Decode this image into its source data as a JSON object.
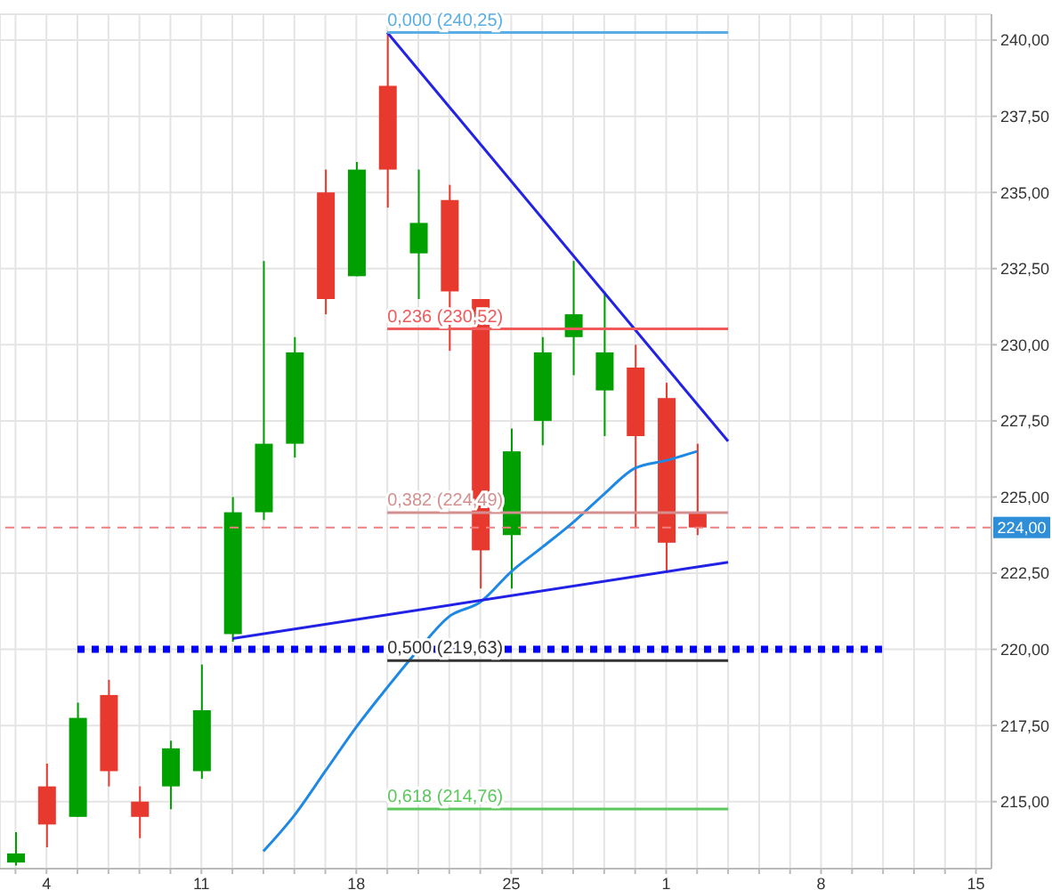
{
  "chart_data": {
    "type": "candlestick",
    "categories": [
      null,
      "4",
      null,
      null,
      null,
      null,
      "11",
      null,
      null,
      null,
      null,
      "18",
      null,
      null,
      null,
      null,
      "25",
      null,
      null,
      null,
      null,
      "1",
      null,
      null,
      null,
      null,
      "8",
      null,
      null,
      null,
      null,
      "15"
    ],
    "ohlc": [
      [
        213.0,
        214.0,
        212.9,
        213.3
      ],
      [
        215.5,
        216.25,
        213.5,
        214.25
      ],
      [
        214.5,
        218.25,
        214.5,
        217.75
      ],
      [
        218.5,
        219.0,
        215.5,
        216.0
      ],
      [
        215.0,
        215.5,
        213.8,
        214.5
      ],
      [
        215.5,
        217.0,
        214.75,
        216.75
      ],
      [
        216.0,
        219.5,
        215.75,
        218.0
      ],
      [
        220.5,
        225.0,
        220.25,
        224.5
      ],
      [
        224.5,
        232.75,
        224.25,
        226.75
      ],
      [
        226.75,
        230.25,
        226.3,
        229.75
      ],
      [
        235.0,
        235.75,
        231.0,
        231.5
      ],
      [
        232.25,
        236.0,
        232.25,
        235.75
      ],
      [
        238.5,
        240.25,
        234.5,
        235.75
      ],
      [
        233.0,
        235.75,
        231.5,
        234.0
      ],
      [
        234.75,
        235.25,
        229.8,
        231.75
      ],
      [
        231.5,
        231.5,
        222.0,
        223.25
      ],
      [
        223.75,
        227.25,
        222.0,
        226.5
      ],
      [
        227.5,
        230.25,
        226.7,
        229.75
      ],
      [
        230.25,
        232.75,
        229.0,
        231.0
      ],
      [
        228.5,
        231.75,
        227.0,
        229.75
      ],
      [
        229.25,
        230.0,
        224.0,
        227.0
      ],
      [
        228.25,
        228.75,
        222.5,
        223.5
      ],
      [
        224.5,
        226.75,
        223.75,
        224.0
      ],
      null,
      null,
      null,
      null,
      null,
      null,
      null,
      null,
      null
    ],
    "colors": [
      "#00a000",
      "#e8392f",
      "#00a000",
      "#e8392f",
      "#e8392f",
      "#00a000",
      "#00a000",
      "#00a000",
      "#00a000",
      "#00a000",
      "#e8392f",
      "#00a000",
      "#e8392f",
      "#00a000",
      "#e8392f",
      "#e8392f",
      "#00a000",
      "#00a000",
      "#00a000",
      "#00a000",
      "#e8392f",
      "#e8392f",
      "#e8392f",
      null,
      null,
      null,
      null,
      null,
      null,
      null,
      null,
      null
    ],
    "series": [
      {
        "type": "line",
        "color": "#1e88e5",
        "values": [
          null,
          null,
          null,
          null,
          null,
          null,
          null,
          null,
          213.37,
          214.55,
          216.0,
          217.45,
          218.75,
          219.98,
          221.08,
          221.55,
          222.55,
          223.35,
          224.17,
          225.1,
          225.95,
          226.2,
          226.5,
          null,
          null,
          null,
          null,
          null,
          null,
          null,
          null,
          null
        ]
      },
      {
        "type": "line",
        "color": "#2222e6",
        "values": [
          null,
          null,
          null,
          null,
          null,
          null,
          null,
          null,
          null,
          null,
          null,
          null,
          240.25,
          null,
          null,
          null,
          null,
          null,
          null,
          null,
          null,
          null,
          null,
          226.83,
          null,
          null,
          null,
          null,
          null,
          null,
          null,
          null
        ]
      },
      {
        "type": "line",
        "color": "#2222e6",
        "values": [
          null,
          null,
          null,
          null,
          null,
          null,
          null,
          220.35,
          null,
          null,
          null,
          null,
          null,
          null,
          null,
          null,
          null,
          null,
          null,
          null,
          null,
          null,
          null,
          222.86,
          null,
          null,
          null,
          null,
          null,
          null,
          null,
          null
        ]
      },
      {
        "type": "line",
        "color": "#0000ff",
        "line_style": "dotted",
        "values": [
          null,
          null,
          220,
          null,
          null,
          null,
          null,
          null,
          null,
          null,
          null,
          null,
          null,
          null,
          null,
          null,
          null,
          null,
          null,
          null,
          null,
          null,
          null,
          null,
          null,
          null,
          null,
          null,
          220,
          null,
          null,
          null
        ]
      },
      {
        "type": "line",
        "name": "0,000 (240,25)",
        "color": "#5aaee6",
        "values": [
          null,
          null,
          null,
          null,
          null,
          null,
          null,
          null,
          null,
          null,
          null,
          null,
          240.25,
          null,
          null,
          null,
          null,
          null,
          null,
          null,
          null,
          null,
          null,
          240.25,
          null,
          null,
          null,
          null,
          null,
          null,
          null,
          null
        ]
      },
      {
        "type": "line",
        "name": "0,236 (230,52)",
        "color": "#f05a5a",
        "values": [
          null,
          null,
          null,
          null,
          null,
          null,
          null,
          null,
          null,
          null,
          null,
          null,
          230.52,
          null,
          null,
          null,
          null,
          null,
          null,
          null,
          null,
          null,
          null,
          230.52,
          null,
          null,
          null,
          null,
          null,
          null,
          null,
          null
        ]
      },
      {
        "type": "line",
        "name": "0,382 (224,49)",
        "color": "#d49090",
        "values": [
          null,
          null,
          null,
          null,
          null,
          null,
          null,
          null,
          null,
          null,
          null,
          null,
          224.49,
          null,
          null,
          null,
          null,
          null,
          null,
          null,
          null,
          null,
          null,
          224.49,
          null,
          null,
          null,
          null,
          null,
          null,
          null,
          null
        ]
      },
      {
        "type": "line",
        "name": "0,500 (219,63)",
        "color": "#333333",
        "values": [
          null,
          null,
          null,
          null,
          null,
          null,
          null,
          null,
          null,
          null,
          null,
          null,
          219.63,
          null,
          null,
          null,
          null,
          null,
          null,
          null,
          null,
          null,
          null,
          219.63,
          null,
          null,
          null,
          null,
          null,
          null,
          null,
          null
        ]
      },
      {
        "type": "line",
        "name": "0,618 (214,76)",
        "color": "#5cc85c",
        "values": [
          null,
          null,
          null,
          null,
          null,
          null,
          null,
          null,
          null,
          null,
          null,
          null,
          214.76,
          null,
          null,
          null,
          null,
          null,
          null,
          null,
          null,
          null,
          null,
          214.76,
          null,
          null,
          null,
          null,
          null,
          null,
          null,
          null
        ]
      }
    ],
    "ref_lines": [
      {
        "axis": "y",
        "value": 224,
        "label": "224,00",
        "color": "#f08080",
        "line_style": "dashed"
      }
    ],
    "ylim": [
      212.8,
      240.85
    ],
    "yticks": [
      {
        "value": 215,
        "label": "215,00"
      },
      {
        "value": 217.5,
        "label": "217,50"
      },
      {
        "value": 220,
        "label": "220,00"
      },
      {
        "value": 222.5,
        "label": "222,50"
      },
      {
        "value": 225,
        "label": "225,00"
      },
      {
        "value": 227.5,
        "label": "227,50"
      },
      {
        "value": 230,
        "label": "230,00"
      },
      {
        "value": 232.5,
        "label": "232,50"
      },
      {
        "value": 235,
        "label": "235,00"
      },
      {
        "value": 237.5,
        "label": "237,50"
      },
      {
        "value": 240,
        "label": "240,00"
      }
    ],
    "grid": true
  }
}
